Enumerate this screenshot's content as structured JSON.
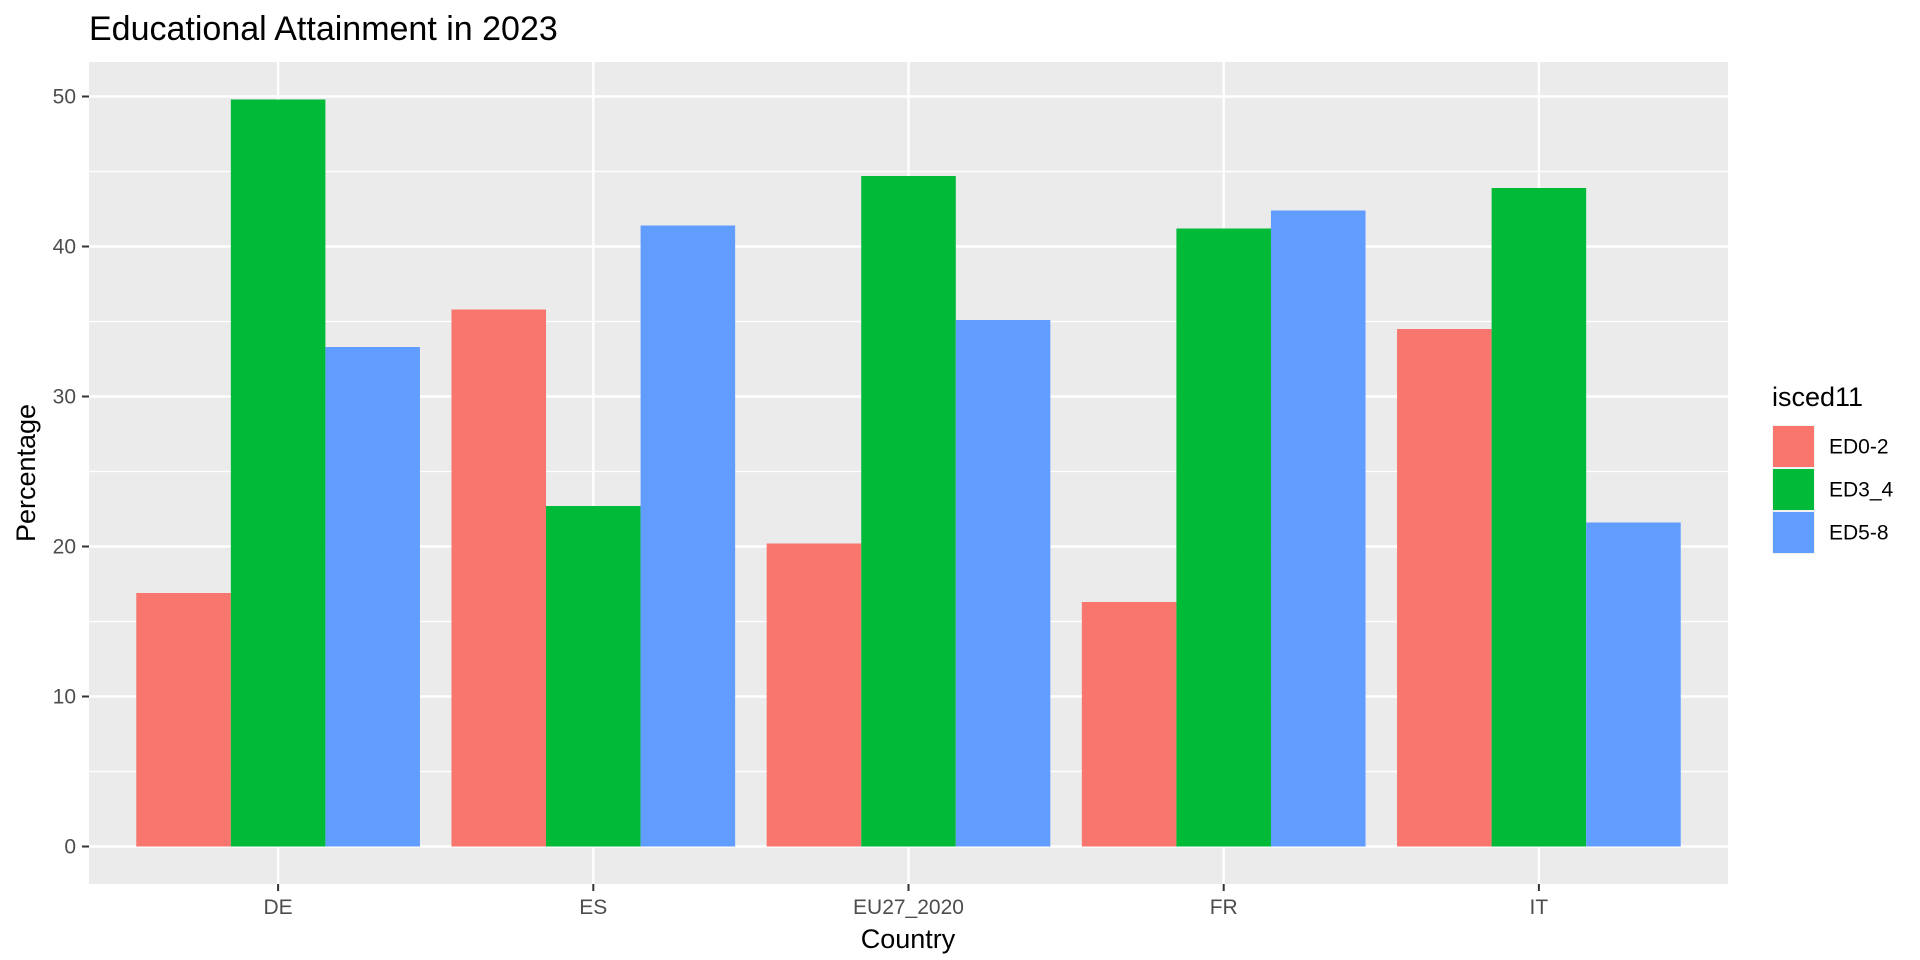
{
  "chart_data": {
    "type": "bar",
    "title": "Educational Attainment in 2023",
    "xlabel": "Country",
    "ylabel": "Percentage",
    "categories": [
      "DE",
      "ES",
      "EU27_2020",
      "FR",
      "IT"
    ],
    "series": [
      {
        "name": "ED0-2",
        "color": "#F8766D",
        "values": [
          16.9,
          35.8,
          20.2,
          16.3,
          34.5
        ]
      },
      {
        "name": "ED3_4",
        "color": "#00BA38",
        "values": [
          49.8,
          22.7,
          44.7,
          41.2,
          43.9
        ]
      },
      {
        "name": "ED5-8",
        "color": "#619CFF",
        "values": [
          33.3,
          41.4,
          35.1,
          42.4,
          21.6
        ]
      }
    ],
    "ylim": [
      -2.5,
      52.3
    ],
    "yticks": [
      0,
      10,
      20,
      30,
      40,
      50
    ],
    "grid": true,
    "panel_background": "#EBEBEB",
    "legend": {
      "title": "isced11",
      "placement": "right"
    }
  }
}
